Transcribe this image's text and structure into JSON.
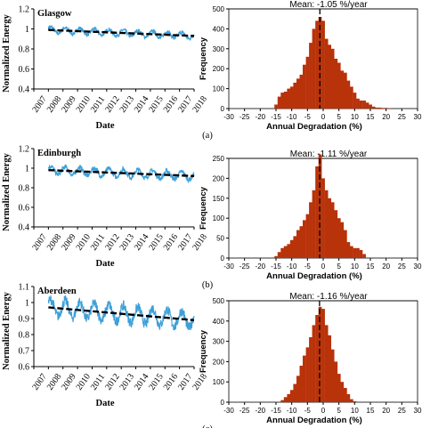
{
  "chart_data": [
    {
      "type": "line",
      "title": "Glasgow",
      "xlabel": "Date",
      "ylabel": "Normalized Energy",
      "xticks": [
        "2007",
        "2008",
        "2009",
        "2010",
        "2011",
        "2012",
        "2013",
        "2014",
        "2015",
        "2016",
        "2017",
        "2018"
      ],
      "yticks": [
        "0.4",
        "0.6",
        "0.8",
        "1",
        "1.2"
      ],
      "xlim": [
        2007,
        2018
      ],
      "ylim": [
        0.4,
        1.2
      ],
      "series": [
        {
          "color": "#3d9fd8",
          "start": 2008.0,
          "end": 2018.0,
          "amplitude": 0.03
        }
      ],
      "trend": {
        "color": "#000000",
        "x": [
          2008.0,
          2018.0
        ],
        "y": [
          0.99,
          0.93
        ]
      }
    },
    {
      "type": "bar",
      "title": "Mean: -1.05 %/year",
      "xlabel": "Annual Degradation (%)",
      "ylabel": "Frequency",
      "xticks": [
        "-30",
        "-25",
        "-20",
        "-15",
        "-10",
        "-5",
        "0",
        "5",
        "10",
        "15",
        "20",
        "25",
        "30"
      ],
      "yticks": [
        "0",
        "100",
        "200",
        "300",
        "400",
        "500"
      ],
      "xlim": [
        -30,
        30
      ],
      "ylim": [
        0,
        500
      ],
      "bar_color": "#b8320a",
      "mean": -1.05,
      "bins_x": [
        -15,
        -14,
        -13,
        -12,
        -11,
        -10,
        -9,
        -8,
        -7,
        -6,
        -5,
        -4,
        -3,
        -2,
        -1,
        0,
        1,
        2,
        3,
        4,
        5,
        6,
        7,
        8,
        9,
        10,
        11,
        12,
        13,
        14,
        15,
        16,
        17,
        18,
        19,
        20,
        21
      ],
      "bins_y": [
        20,
        60,
        80,
        85,
        100,
        110,
        130,
        150,
        170,
        220,
        260,
        330,
        400,
        440,
        460,
        440,
        350,
        320,
        300,
        250,
        230,
        190,
        180,
        140,
        110,
        80,
        50,
        40,
        40,
        30,
        20,
        10,
        5,
        5,
        3,
        3,
        2
      ],
      "panel_label": "(a)"
    },
    {
      "type": "line",
      "title": "Edinburgh",
      "xlabel": "Date",
      "ylabel": "Normalized Energy",
      "xticks": [
        "2007",
        "2008",
        "2009",
        "2010",
        "2011",
        "2012",
        "2013",
        "2014",
        "2015",
        "2016",
        "2017",
        "2018"
      ],
      "yticks": [
        "0.4",
        "0.6",
        "0.8",
        "1",
        "1.2"
      ],
      "xlim": [
        2007,
        2018
      ],
      "ylim": [
        0.4,
        1.2
      ],
      "series": [
        {
          "color": "#3d9fd8",
          "start": 2008.0,
          "end": 2018.0,
          "amplitude": 0.04
        }
      ],
      "trend": {
        "color": "#000000",
        "x": [
          2008.0,
          2018.0
        ],
        "y": [
          0.98,
          0.92
        ]
      }
    },
    {
      "type": "bar",
      "title": "Mean: -1.11 %/year",
      "xlabel": "Annual Degradation (%)",
      "ylabel": "Frequency",
      "xticks": [
        "-30",
        "-25",
        "-20",
        "-15",
        "-10",
        "-5",
        "0",
        "5",
        "10",
        "15",
        "20",
        "25",
        "30"
      ],
      "yticks": [
        "0",
        "50",
        "100",
        "150",
        "200",
        "250"
      ],
      "xlim": [
        -30,
        30
      ],
      "ylim": [
        0,
        250
      ],
      "bar_color": "#b8320a",
      "mean": -1.11,
      "bins_x": [
        -15,
        -14,
        -13,
        -12,
        -11,
        -10,
        -9,
        -8,
        -7,
        -6,
        -5,
        -4,
        -3,
        -2,
        -1,
        0,
        1,
        2,
        3,
        4,
        5,
        6,
        7,
        8,
        9,
        10,
        11,
        12,
        13
      ],
      "bins_y": [
        5,
        15,
        25,
        30,
        35,
        45,
        55,
        70,
        80,
        95,
        110,
        140,
        170,
        230,
        260,
        200,
        170,
        150,
        140,
        120,
        100,
        90,
        70,
        40,
        30,
        25,
        25,
        20,
        10
      ],
      "panel_label": "(b)"
    },
    {
      "type": "line",
      "title": "Aberdeen",
      "xlabel": "Date",
      "ylabel": "Normalized Energy",
      "xticks": [
        "2007",
        "2008",
        "2009",
        "2010",
        "2011",
        "2012",
        "2013",
        "2014",
        "2015",
        "2016",
        "2017",
        "2018"
      ],
      "yticks": [
        "0.6",
        "0.7",
        "0.8",
        "0.9",
        "1",
        "1.1"
      ],
      "xlim": [
        2007,
        2018
      ],
      "ylim": [
        0.6,
        1.1
      ],
      "series": [
        {
          "color": "#3d9fd8",
          "start": 2008.0,
          "end": 2018.0,
          "amplitude": 0.05
        }
      ],
      "trend": {
        "color": "#000000",
        "x": [
          2008.0,
          2018.0
        ],
        "y": [
          0.97,
          0.89
        ]
      }
    },
    {
      "type": "bar",
      "title": "Mean: -1.16 %/year",
      "xlabel": "Annual Degradation (%)",
      "ylabel": "Frequency",
      "xticks": [
        "-30",
        "-25",
        "-20",
        "-15",
        "-10",
        "-5",
        "0",
        "5",
        "10",
        "15",
        "20",
        "25",
        "30"
      ],
      "yticks": [
        "0",
        "100",
        "200",
        "300",
        "400",
        "500"
      ],
      "xlim": [
        -30,
        30
      ],
      "ylim": [
        0,
        500
      ],
      "bar_color": "#b8320a",
      "mean": -1.16,
      "bins_x": [
        -13,
        -12,
        -11,
        -10,
        -9,
        -8,
        -7,
        -6,
        -5,
        -4,
        -3,
        -2,
        -1,
        0,
        1,
        2,
        3,
        4,
        5,
        6,
        7,
        8,
        9,
        10
      ],
      "bins_y": [
        10,
        25,
        40,
        60,
        90,
        130,
        180,
        230,
        270,
        320,
        380,
        430,
        470,
        460,
        380,
        330,
        260,
        200,
        140,
        100,
        70,
        40,
        15,
        5
      ],
      "panel_label": "(c)"
    }
  ]
}
